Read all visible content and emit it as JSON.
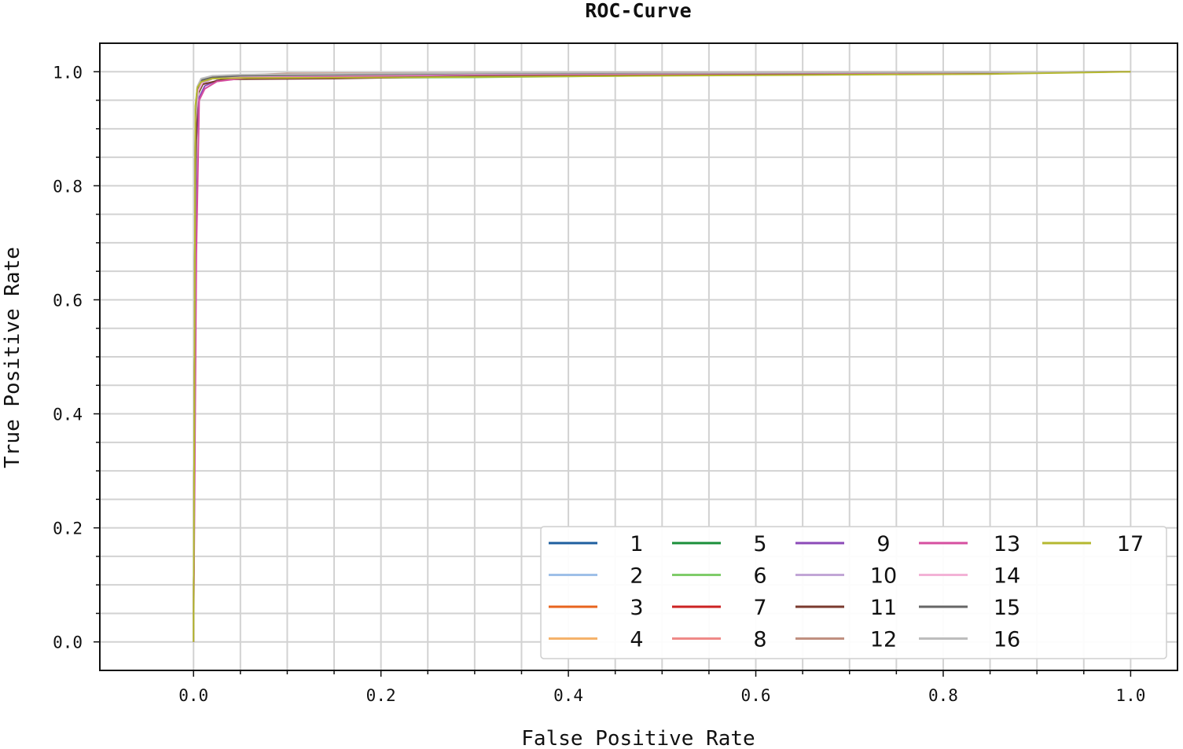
{
  "chart_data": {
    "type": "line",
    "title": "ROC-Curve",
    "xlabel": "False Positive Rate",
    "ylabel": "True Positive Rate",
    "xlim": [
      -0.1,
      1.05
    ],
    "ylim": [
      -0.05,
      1.05
    ],
    "x_ticks": [
      "0.0",
      "0.2",
      "0.4",
      "0.6",
      "0.8",
      "1.0"
    ],
    "y_ticks": [
      "0.0",
      "0.2",
      "0.4",
      "0.6",
      "0.8",
      "1.0"
    ],
    "grid": true,
    "legend_position": "bottom-right",
    "legend_columns": 5,
    "series": [
      {
        "name": "1",
        "color": "#1f5f9f",
        "x": [
          0,
          0.002,
          0.004,
          0.008,
          0.02,
          0.05,
          0.2,
          1.0
        ],
        "y": [
          0,
          0.93,
          0.97,
          0.985,
          0.99,
          0.992,
          0.996,
          1.0
        ]
      },
      {
        "name": "2",
        "color": "#9ec0e8",
        "x": [
          0,
          0.002,
          0.004,
          0.008,
          0.02,
          0.05,
          0.3,
          1.0
        ],
        "y": [
          0,
          0.92,
          0.968,
          0.983,
          0.99,
          0.993,
          0.997,
          1.0
        ]
      },
      {
        "name": "3",
        "color": "#e8641e",
        "x": [
          0,
          0.002,
          0.005,
          0.01,
          0.02,
          0.05,
          0.3,
          1.0
        ],
        "y": [
          0,
          0.91,
          0.965,
          0.98,
          0.988,
          0.991,
          0.996,
          1.0
        ]
      },
      {
        "name": "4",
        "color": "#f5b26b",
        "x": [
          0,
          0.002,
          0.005,
          0.01,
          0.02,
          0.06,
          0.4,
          1.0
        ],
        "y": [
          0,
          0.92,
          0.966,
          0.981,
          0.989,
          0.992,
          0.996,
          1.0
        ]
      },
      {
        "name": "5",
        "color": "#1a8f3a",
        "x": [
          0,
          0.002,
          0.004,
          0.008,
          0.02,
          0.05,
          0.3,
          1.0
        ],
        "y": [
          0,
          0.93,
          0.972,
          0.985,
          0.99,
          0.992,
          0.996,
          1.0
        ]
      },
      {
        "name": "6",
        "color": "#7fcc6a",
        "x": [
          0,
          0.002,
          0.005,
          0.01,
          0.03,
          0.1,
          0.3,
          0.6,
          1.0
        ],
        "y": [
          0,
          0.91,
          0.96,
          0.978,
          0.986,
          0.989,
          0.99,
          0.995,
          1.0
        ]
      },
      {
        "name": "7",
        "color": "#cc2222",
        "x": [
          0,
          0.002,
          0.004,
          0.008,
          0.02,
          0.05,
          0.3,
          1.0
        ],
        "y": [
          0,
          0.92,
          0.969,
          0.984,
          0.99,
          0.992,
          0.996,
          1.0
        ]
      },
      {
        "name": "8",
        "color": "#ef8a88",
        "x": [
          0,
          0.002,
          0.005,
          0.01,
          0.02,
          0.05,
          0.3,
          1.0
        ],
        "y": [
          0,
          0.9,
          0.962,
          0.98,
          0.988,
          0.991,
          0.996,
          1.0
        ]
      },
      {
        "name": "9",
        "color": "#8c4ab8",
        "x": [
          0,
          0.003,
          0.006,
          0.012,
          0.025,
          0.06,
          0.38,
          1.0
        ],
        "y": [
          0,
          0.88,
          0.955,
          0.975,
          0.985,
          0.99,
          0.995,
          1.0
        ]
      },
      {
        "name": "10",
        "color": "#c2a6d6",
        "x": [
          0,
          0.002,
          0.005,
          0.01,
          0.02,
          0.05,
          0.3,
          1.0
        ],
        "y": [
          0,
          0.91,
          0.964,
          0.98,
          0.988,
          0.992,
          0.996,
          1.0
        ]
      },
      {
        "name": "11",
        "color": "#7a3a2e",
        "x": [
          0,
          0.002,
          0.004,
          0.01,
          0.03,
          0.05,
          0.15,
          0.3,
          1.0
        ],
        "y": [
          0,
          0.82,
          0.96,
          0.978,
          0.986,
          0.987,
          0.988,
          0.992,
          1.0
        ]
      },
      {
        "name": "12",
        "color": "#c09080",
        "x": [
          0,
          0.002,
          0.005,
          0.01,
          0.02,
          0.1,
          0.5,
          1.0
        ],
        "y": [
          0,
          0.92,
          0.968,
          0.984,
          0.992,
          0.997,
          0.999,
          1.0
        ]
      },
      {
        "name": "13",
        "color": "#d64fa0",
        "x": [
          0,
          0.003,
          0.006,
          0.012,
          0.025,
          0.06,
          0.3,
          1.0
        ],
        "y": [
          0,
          0.68,
          0.95,
          0.97,
          0.983,
          0.99,
          0.995,
          1.0
        ]
      },
      {
        "name": "14",
        "color": "#f3b2d6",
        "x": [
          0,
          0.002,
          0.005,
          0.01,
          0.02,
          0.05,
          0.3,
          1.0
        ],
        "y": [
          0,
          0.91,
          0.966,
          0.982,
          0.989,
          0.992,
          0.996,
          1.0
        ]
      },
      {
        "name": "15",
        "color": "#666666",
        "x": [
          0,
          0.002,
          0.004,
          0.008,
          0.02,
          0.05,
          0.3,
          1.0
        ],
        "y": [
          0,
          0.92,
          0.97,
          0.985,
          0.99,
          0.993,
          0.997,
          1.0
        ]
      },
      {
        "name": "16",
        "color": "#bdbdbd",
        "x": [
          0,
          0.002,
          0.004,
          0.008,
          0.02,
          0.05,
          0.3,
          1.0
        ],
        "y": [
          0,
          0.93,
          0.974,
          0.988,
          0.993,
          0.995,
          0.998,
          1.0
        ]
      },
      {
        "name": "17",
        "color": "#b5b830",
        "x": [
          0,
          0.002,
          0.004,
          0.008,
          0.02,
          0.05,
          0.2,
          0.5,
          0.85,
          1.0
        ],
        "y": [
          0,
          0.94,
          0.972,
          0.982,
          0.988,
          0.989,
          0.99,
          0.993,
          0.996,
          1.0
        ]
      }
    ]
  }
}
